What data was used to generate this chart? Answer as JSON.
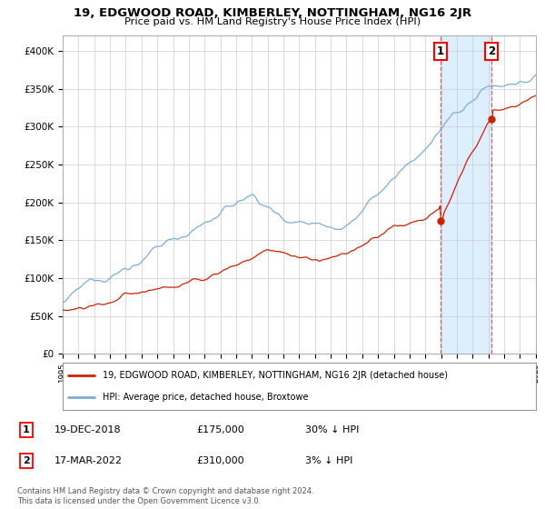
{
  "title": "19, EDGWOOD ROAD, KIMBERLEY, NOTTINGHAM, NG16 2JR",
  "subtitle": "Price paid vs. HM Land Registry's House Price Index (HPI)",
  "legend_line1": "19, EDGWOOD ROAD, KIMBERLEY, NOTTINGHAM, NG16 2JR (detached house)",
  "legend_line2": "HPI: Average price, detached house, Broxtowe",
  "sale1_label": "1",
  "sale1_date": "19-DEC-2018",
  "sale1_price": "£175,000",
  "sale1_hpi": "30% ↓ HPI",
  "sale2_label": "2",
  "sale2_date": "17-MAR-2022",
  "sale2_price": "£310,000",
  "sale2_hpi": "3% ↓ HPI",
  "footer": "Contains HM Land Registry data © Crown copyright and database right 2024.\nThis data is licensed under the Open Government Licence v3.0.",
  "hpi_color": "#7aaddb",
  "price_color": "#cc2200",
  "point_color": "#cc2200",
  "bg_color": "#ffffff",
  "shade_color": "#ddeeff",
  "grid_color": "#cccccc",
  "ylim_max": 420000,
  "sale1_year": 2018.96,
  "sale1_value": 175000,
  "sale2_year": 2022.21,
  "sale2_value": 310000,
  "xstart": 1995,
  "xend": 2025
}
